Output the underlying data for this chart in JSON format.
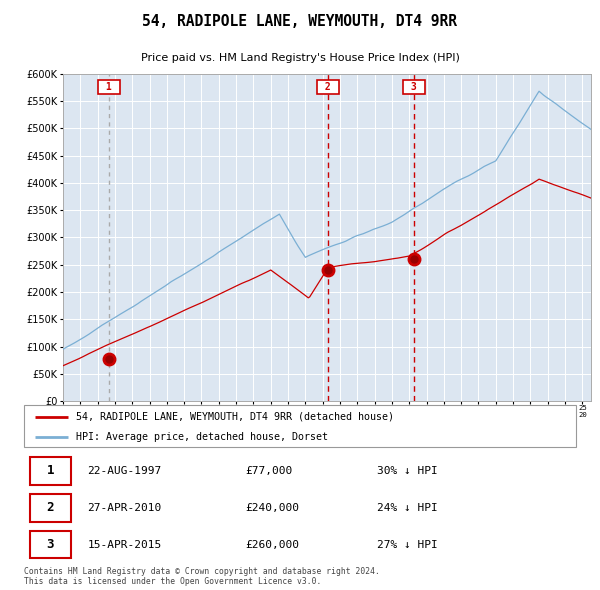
{
  "title": "54, RADIPOLE LANE, WEYMOUTH, DT4 9RR",
  "subtitle": "Price paid vs. HM Land Registry's House Price Index (HPI)",
  "legend_line1": "54, RADIPOLE LANE, WEYMOUTH, DT4 9RR (detached house)",
  "legend_line2": "HPI: Average price, detached house, Dorset",
  "table_rows": [
    {
      "num": "1",
      "date": "22-AUG-1997",
      "price": "£77,000",
      "hpi": "30% ↓ HPI"
    },
    {
      "num": "2",
      "date": "27-APR-2010",
      "price": "£240,000",
      "hpi": "24% ↓ HPI"
    },
    {
      "num": "3",
      "date": "15-APR-2015",
      "price": "£260,000",
      "hpi": "27% ↓ HPI"
    }
  ],
  "footer": "Contains HM Land Registry data © Crown copyright and database right 2024.\nThis data is licensed under the Open Government Licence v3.0.",
  "plot_bg_color": "#dce6f1",
  "red_color": "#cc0000",
  "blue_color": "#7bafd4",
  "sale_dates": [
    1997.644,
    2010.319,
    2015.286
  ],
  "sale_prices": [
    77000,
    240000,
    260000
  ],
  "ylim": [
    0,
    600000
  ],
  "xlim_start": 1995.0,
  "xlim_end": 2025.5
}
